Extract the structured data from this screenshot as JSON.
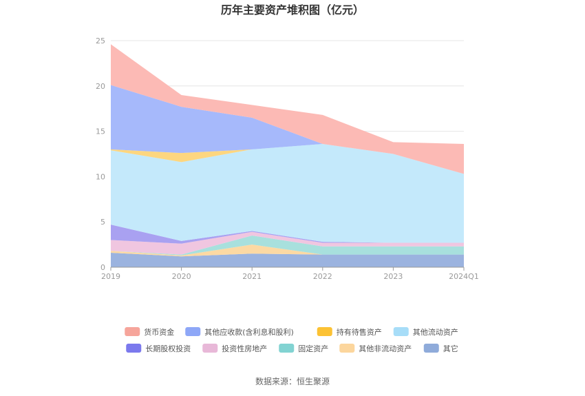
{
  "chart_data": {
    "type": "area",
    "stacked": true,
    "title": "历年主要资产堆积图（亿元）",
    "categories": [
      "2019",
      "2020",
      "2021",
      "2022",
      "2023",
      "2024Q1"
    ],
    "ylim": [
      0,
      25
    ],
    "yticks": [
      0,
      5,
      10,
      15,
      20,
      25
    ],
    "grid": true,
    "legend_position": "bottom",
    "series": [
      {
        "name": "其它",
        "color": "#9bb3df",
        "values": [
          1.6,
          1.2,
          1.5,
          1.4,
          1.4,
          1.4
        ]
      },
      {
        "name": "其他非流动资产",
        "color": "#fcd9a3",
        "values": [
          0.2,
          0.1,
          1.0,
          0.0,
          0.0,
          0.0
        ]
      },
      {
        "name": "固定资产",
        "color": "#a8e0dd",
        "values": [
          0.0,
          0.1,
          1.0,
          0.9,
          0.9,
          0.9
        ]
      },
      {
        "name": "投资性房地产",
        "color": "#f0c6e0",
        "values": [
          1.2,
          1.2,
          0.4,
          0.4,
          0.4,
          0.4
        ]
      },
      {
        "name": "长期股权投资",
        "color": "#a9a1f1",
        "values": [
          1.7,
          0.3,
          0.1,
          0.1,
          0.0,
          0.0
        ]
      },
      {
        "name": "其他流动资产",
        "color": "#c4e9fb",
        "values": [
          8.2,
          8.7,
          9.0,
          10.8,
          9.8,
          7.6
        ]
      },
      {
        "name": "持有待售资产",
        "color": "#fdd67f",
        "values": [
          0.1,
          1.0,
          0.0,
          0.0,
          0.0,
          0.0
        ]
      },
      {
        "name": "其他应收款(含利息和股利)",
        "color": "#a6b9fb",
        "values": [
          7.1,
          5.1,
          3.5,
          0.0,
          0.0,
          0.0
        ]
      },
      {
        "name": "货币资金",
        "color": "#fcbab5",
        "values": [
          4.5,
          1.3,
          1.4,
          3.2,
          1.3,
          3.3
        ]
      }
    ],
    "legend": [
      {
        "name": "货币资金",
        "swatch": "#f6a59b"
      },
      {
        "name": "其他应收款(含利息和股利)",
        "swatch": "#8ea7f7"
      },
      {
        "name": "持有待售资产",
        "swatch": "#fcc234"
      },
      {
        "name": "其他流动资产",
        "swatch": "#a7ddf8"
      },
      {
        "name": "长期股权投资",
        "swatch": "#7b79ed"
      },
      {
        "name": "投资性房地产",
        "swatch": "#e8b8d8"
      },
      {
        "name": "固定资产",
        "swatch": "#82d3d2"
      },
      {
        "name": "其他非流动资产",
        "swatch": "#fcd69d"
      },
      {
        "name": "其它",
        "swatch": "#8fabda"
      }
    ]
  },
  "source": "数据来源：恒生聚源"
}
